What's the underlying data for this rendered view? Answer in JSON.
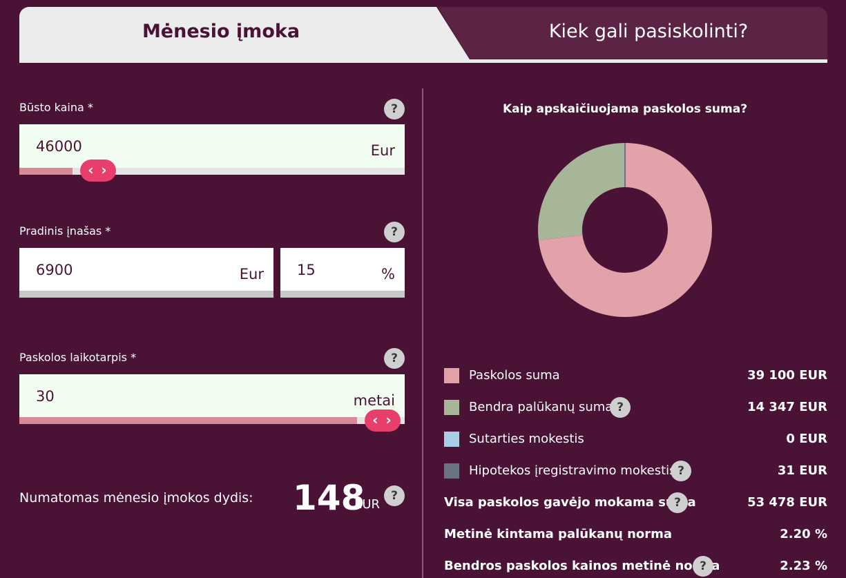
{
  "tabs": {
    "active": "Mėnesio įmoka",
    "inactive": "Kiek gali pasiskolinti?"
  },
  "help_symbol": "?",
  "house_price": {
    "label": "Būsto kaina *",
    "value": "46000",
    "unit": "Eur",
    "slider_fraction": 0.11
  },
  "down_payment": {
    "label": "Pradinis įnašas *",
    "amount_value": "6900",
    "amount_unit": "Eur",
    "percent_value": "15",
    "percent_unit": "%"
  },
  "loan_term": {
    "label": "Paskolos laikotarpis *",
    "value": "30",
    "unit": "metai",
    "slider_fraction": 1.0
  },
  "slider_handle": "‹ ›",
  "result": {
    "label": "Numatomas mėnesio įmokos dydis:",
    "value": "148",
    "unit": "EUR"
  },
  "chart_title": "Kaip apskaičiuojama paskolos suma?",
  "chart_data": {
    "type": "pie",
    "donut": true,
    "categories": [
      "Paskolos suma",
      "Bendra palūkanų suma",
      "Sutarties mokestis",
      "Hipotekos įregistravimo mokestis"
    ],
    "values": [
      39100,
      14347,
      0,
      31
    ],
    "colors": [
      "#e3a1aa",
      "#a7b698",
      "#a9cfe6",
      "#6c7384"
    ]
  },
  "legend": [
    {
      "label": "Paskolos suma",
      "amount": "39 100 EUR",
      "color": "#e3a1aa",
      "help": false
    },
    {
      "label": "Bendra palūkanų suma",
      "amount": "14 347 EUR",
      "color": "#a7b698",
      "help": true
    },
    {
      "label": "Sutarties mokestis",
      "amount": "0 EUR",
      "color": "#a9cfe6",
      "help": false
    },
    {
      "label": "Hipotekos įregistravimo mokestis",
      "amount": "31 EUR",
      "color": "#6c7384",
      "help": true
    }
  ],
  "summary": [
    {
      "label": "Visa paskolos gavėjo mokama suma",
      "amount": "53 478 EUR",
      "help": true
    },
    {
      "label": "Metinė kintama palūkanų norma",
      "amount": "2.20 %",
      "help": false
    },
    {
      "label": "Bendros paskolos kainos metinė norma",
      "amount": "2.23 %",
      "help": true
    }
  ]
}
